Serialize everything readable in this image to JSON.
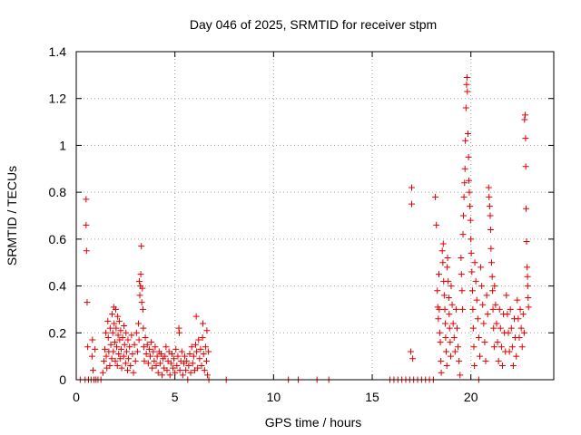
{
  "chart_data": {
    "type": "scatter",
    "title": "Day 046 of 2025, SRMTID for receiver stpm",
    "xlabel": "GPS time / hours",
    "ylabel": "SRMTID / TECUs",
    "xlim": [
      0,
      24.2
    ],
    "ylim": [
      0,
      1.4
    ],
    "x_ticks": [
      0,
      5,
      10,
      15,
      20
    ],
    "x_tick_labels": [
      "0",
      "5",
      "10",
      "15",
      "20"
    ],
    "y_ticks": [
      0,
      0.2,
      0.4,
      0.6,
      0.8,
      1.0,
      1.2,
      1.4
    ],
    "y_tick_labels": [
      "0",
      "0.2",
      "0.4",
      "0.6",
      "0.8",
      "1",
      "1.2",
      "1.4"
    ],
    "grid": true,
    "marker": "+",
    "series": [
      {
        "name": "SRMTID",
        "color": "#e00000",
        "points": [
          [
            0.2,
            0
          ],
          [
            0.45,
            0
          ],
          [
            0.5,
            0.77
          ],
          [
            0.5,
            0.66
          ],
          [
            0.52,
            0.55
          ],
          [
            0.55,
            0.33
          ],
          [
            0.58,
            0.14
          ],
          [
            0.62,
            0
          ],
          [
            0.75,
            0
          ],
          [
            0.8,
            0.1
          ],
          [
            0.82,
            0.17
          ],
          [
            0.85,
            0.04
          ],
          [
            0.9,
            0
          ],
          [
            0.95,
            0.13
          ],
          [
            1.0,
            0
          ],
          [
            1.1,
            0
          ],
          [
            1.25,
            0
          ],
          [
            1.35,
            0.03
          ],
          [
            1.4,
            0.08
          ],
          [
            1.45,
            0.13
          ],
          [
            1.5,
            0.2
          ],
          [
            1.52,
            0.1
          ],
          [
            1.55,
            0.05
          ],
          [
            1.6,
            0.25
          ],
          [
            1.62,
            0.18
          ],
          [
            1.65,
            0.12
          ],
          [
            1.7,
            0.06
          ],
          [
            1.72,
            0.22
          ],
          [
            1.75,
            0.15
          ],
          [
            1.8,
            0.09
          ],
          [
            1.82,
            0.28
          ],
          [
            1.85,
            0.2
          ],
          [
            1.88,
            0.12
          ],
          [
            1.9,
            0.31
          ],
          [
            1.92,
            0.24
          ],
          [
            1.95,
            0.16
          ],
          [
            1.98,
            0.08
          ],
          [
            2.0,
            0.3
          ],
          [
            2.02,
            0.22
          ],
          [
            2.05,
            0.14
          ],
          [
            2.08,
            0.06
          ],
          [
            2.1,
            0.27
          ],
          [
            2.12,
            0.19
          ],
          [
            2.15,
            0.11
          ],
          [
            2.18,
            0.25
          ],
          [
            2.2,
            0.17
          ],
          [
            2.22,
            0.09
          ],
          [
            2.25,
            0.21
          ],
          [
            2.28,
            0.13
          ],
          [
            2.3,
            0.05
          ],
          [
            2.35,
            0.18
          ],
          [
            2.4,
            0.1
          ],
          [
            2.42,
            0.23
          ],
          [
            2.45,
            0.15
          ],
          [
            2.5,
            0.07
          ],
          [
            2.52,
            0.2
          ],
          [
            2.55,
            0.12
          ],
          [
            2.6,
            0.04
          ],
          [
            2.62,
            0.17
          ],
          [
            2.65,
            0.09
          ],
          [
            2.7,
            0.14
          ],
          [
            2.75,
            0.06
          ],
          [
            2.8,
            0.19
          ],
          [
            2.85,
            0.11
          ],
          [
            2.9,
            0.03
          ],
          [
            2.95,
            0.15
          ],
          [
            3.0,
            0.08
          ],
          [
            3.05,
            0.2
          ],
          [
            3.1,
            0.12
          ],
          [
            3.15,
            0.24
          ],
          [
            3.18,
            0.17
          ],
          [
            3.2,
            0.42
          ],
          [
            3.22,
            0.36
          ],
          [
            3.25,
            0.4
          ],
          [
            3.27,
            0.45
          ],
          [
            3.3,
            0.57
          ],
          [
            3.32,
            0.33
          ],
          [
            3.35,
            0.39
          ],
          [
            3.38,
            0.3
          ],
          [
            3.4,
            0.22
          ],
          [
            3.42,
            0.14
          ],
          [
            3.45,
            0.08
          ],
          [
            3.5,
            0.18
          ],
          [
            3.55,
            0.11
          ],
          [
            3.6,
            0.15
          ],
          [
            3.65,
            0.07
          ],
          [
            3.7,
            0.13
          ],
          [
            3.75,
            0.1
          ],
          [
            3.8,
            0.16
          ],
          [
            3.85,
            0.05
          ],
          [
            3.9,
            0.12
          ],
          [
            3.95,
            0.08
          ],
          [
            4.0,
            0.14
          ],
          [
            4.05,
            0.06
          ],
          [
            4.1,
            0.1
          ],
          [
            4.15,
            0.03
          ],
          [
            4.2,
            0.12
          ],
          [
            4.25,
            0.07
          ],
          [
            4.3,
            0.11
          ],
          [
            4.35,
            0.02
          ],
          [
            4.4,
            0.09
          ],
          [
            4.45,
            0.05
          ],
          [
            4.5,
            0.1
          ],
          [
            4.55,
            0.14
          ],
          [
            4.6,
            0.04
          ],
          [
            4.65,
            0.08
          ],
          [
            4.7,
            0.12
          ],
          [
            4.75,
            0.02
          ],
          [
            4.8,
            0.07
          ],
          [
            4.85,
            0.11
          ],
          [
            4.9,
            0.05
          ],
          [
            4.95,
            0.09
          ],
          [
            5.0,
            0.03
          ],
          [
            5.05,
            0.13
          ],
          [
            5.1,
            0.06
          ],
          [
            5.15,
            0.1
          ],
          [
            5.2,
            0.22
          ],
          [
            5.22,
            0.2
          ],
          [
            5.25,
            0.04
          ],
          [
            5.3,
            0.08
          ],
          [
            5.35,
            0.12
          ],
          [
            5.4,
            0.02
          ],
          [
            5.45,
            0.07
          ],
          [
            5.5,
            0.1
          ],
          [
            5.55,
            0.04
          ],
          [
            5.6,
            0.08
          ],
          [
            5.65,
            0
          ],
          [
            5.7,
            0.06
          ],
          [
            5.75,
            0.11
          ],
          [
            5.8,
            0.03
          ],
          [
            5.85,
            0.14
          ],
          [
            5.9,
            0.07
          ],
          [
            5.95,
            0.1
          ],
          [
            6.0,
            0.04
          ],
          [
            6.05,
            0.15
          ],
          [
            6.08,
            0.27
          ],
          [
            6.1,
            0.12
          ],
          [
            6.15,
            0.05
          ],
          [
            6.2,
            0.17
          ],
          [
            6.25,
            0.09
          ],
          [
            6.3,
            0.13
          ],
          [
            6.35,
            0.06
          ],
          [
            6.4,
            0.18
          ],
          [
            6.42,
            0.24
          ],
          [
            6.45,
            0.11
          ],
          [
            6.5,
            0.04
          ],
          [
            6.55,
            0.14
          ],
          [
            6.6,
            0.08
          ],
          [
            6.62,
            0.21
          ],
          [
            6.65,
            0.02
          ],
          [
            6.7,
            0.12
          ],
          [
            6.72,
            0
          ],
          [
            7.6,
            0
          ],
          [
            10.75,
            0
          ],
          [
            11.25,
            0
          ],
          [
            12.2,
            0
          ],
          [
            12.8,
            0
          ],
          [
            15.9,
            0
          ],
          [
            16.1,
            0
          ],
          [
            16.3,
            0
          ],
          [
            16.5,
            0
          ],
          [
            16.7,
            0
          ],
          [
            16.9,
            0
          ],
          [
            16.95,
            0.12
          ],
          [
            17.0,
            0.82
          ],
          [
            17.0,
            0.75
          ],
          [
            17.05,
            0.09
          ],
          [
            17.1,
            0
          ],
          [
            17.3,
            0
          ],
          [
            17.5,
            0
          ],
          [
            17.7,
            0
          ],
          [
            17.9,
            0
          ],
          [
            18.1,
            0
          ],
          [
            18.2,
            0.78
          ],
          [
            18.25,
            0.66
          ],
          [
            18.3,
            0.38
          ],
          [
            18.32,
            0.31
          ],
          [
            18.35,
            0.26
          ],
          [
            18.38,
            0.45
          ],
          [
            18.4,
            0.3
          ],
          [
            18.42,
            0.2
          ],
          [
            18.45,
            0.16
          ],
          [
            18.48,
            0.08
          ],
          [
            18.5,
            0.03
          ],
          [
            18.55,
            0.55
          ],
          [
            18.58,
            0.5
          ],
          [
            18.6,
            0.58
          ],
          [
            18.62,
            0.42
          ],
          [
            18.65,
            0.36
          ],
          [
            18.68,
            0.3
          ],
          [
            18.7,
            0.24
          ],
          [
            18.72,
            0.18
          ],
          [
            18.75,
            0.12
          ],
          [
            18.78,
            0.06
          ],
          [
            18.8,
            0.48
          ],
          [
            18.82,
            0.52
          ],
          [
            18.85,
            0.42
          ],
          [
            18.88,
            0.35
          ],
          [
            18.9,
            0.28
          ],
          [
            18.92,
            0.22
          ],
          [
            18.95,
            0.16
          ],
          [
            18.98,
            0.1
          ],
          [
            19.0,
            0.4
          ],
          [
            19.05,
            0.32
          ],
          [
            19.1,
            0.24
          ],
          [
            19.15,
            0.18
          ],
          [
            19.2,
            0.12
          ],
          [
            19.25,
            0.3
          ],
          [
            19.3,
            0.22
          ],
          [
            19.35,
            0.14
          ],
          [
            19.4,
            0.08
          ],
          [
            19.45,
            0.02
          ],
          [
            19.5,
            0.52
          ],
          [
            19.52,
            0.45
          ],
          [
            19.55,
            0.38
          ],
          [
            19.58,
            0.3
          ],
          [
            19.6,
            0.62
          ],
          [
            19.62,
            0.7
          ],
          [
            19.65,
            0.78
          ],
          [
            19.68,
            0.84
          ],
          [
            19.7,
            0.9
          ],
          [
            19.72,
            1.02
          ],
          [
            19.75,
            1.16
          ],
          [
            19.78,
            1.26
          ],
          [
            19.8,
            1.29
          ],
          [
            19.82,
            1.23
          ],
          [
            19.85,
            1.05
          ],
          [
            19.88,
            0.95
          ],
          [
            19.9,
            0.85
          ],
          [
            19.92,
            0.8
          ],
          [
            19.95,
            0.74
          ],
          [
            19.98,
            0.68
          ],
          [
            20.0,
            0.6
          ],
          [
            20.02,
            0.54
          ],
          [
            20.05,
            0.46
          ],
          [
            20.08,
            0.38
          ],
          [
            20.1,
            0.3
          ],
          [
            20.12,
            0.22
          ],
          [
            20.15,
            0.14
          ],
          [
            20.18,
            0.06
          ],
          [
            20.2,
            0.5
          ],
          [
            20.25,
            0.42
          ],
          [
            20.3,
            0.34
          ],
          [
            20.35,
            0.26
          ],
          [
            20.4,
            0
          ],
          [
            20.4,
            0.18
          ],
          [
            20.45,
            0.1
          ],
          [
            20.5,
            0.48
          ],
          [
            20.55,
            0.4
          ],
          [
            20.6,
            0.32
          ],
          [
            20.65,
            0.24
          ],
          [
            20.7,
            0.16
          ],
          [
            20.75,
            0.08
          ],
          [
            20.8,
            0.36
          ],
          [
            20.85,
            0.28
          ],
          [
            20.9,
            0.82
          ],
          [
            20.92,
            0.78
          ],
          [
            20.95,
            0.74
          ],
          [
            20.98,
            0.7
          ],
          [
            21.0,
            0.64
          ],
          [
            21.02,
            0.56
          ],
          [
            21.05,
            0.5
          ],
          [
            21.08,
            0.44
          ],
          [
            21.1,
            0.38
          ],
          [
            21.12,
            0.3
          ],
          [
            21.15,
            0.22
          ],
          [
            21.18,
            0.14
          ],
          [
            21.2,
            0.4
          ],
          [
            21.25,
            0.32
          ],
          [
            21.3,
            0.24
          ],
          [
            21.35,
            0.16
          ],
          [
            21.4,
            0.08
          ],
          [
            21.45,
            0.3
          ],
          [
            21.5,
            0.22
          ],
          [
            21.55,
            0.14
          ],
          [
            21.6,
            0.06
          ],
          [
            21.65,
            0.28
          ],
          [
            21.7,
            0.2
          ],
          [
            21.75,
            0.12
          ],
          [
            21.8,
            0.36
          ],
          [
            21.85,
            0.28
          ],
          [
            21.9,
            0.2
          ],
          [
            21.95,
            0.12
          ],
          [
            22.0,
            0.3
          ],
          [
            22.05,
            0.22
          ],
          [
            22.1,
            0.14
          ],
          [
            22.15,
            0.06
          ],
          [
            22.2,
            0.26
          ],
          [
            22.25,
            0.18
          ],
          [
            22.3,
            0.1
          ],
          [
            22.35,
            0.34
          ],
          [
            22.4,
            0.26
          ],
          [
            22.45,
            0.18
          ],
          [
            22.5,
            0.3
          ],
          [
            22.55,
            0.22
          ],
          [
            22.6,
            0.14
          ],
          [
            22.65,
            0.28
          ],
          [
            22.7,
            0.2
          ],
          [
            22.72,
            1.11
          ],
          [
            22.75,
            1.13
          ],
          [
            22.77,
            1.03
          ],
          [
            22.78,
            0.91
          ],
          [
            22.8,
            0.73
          ],
          [
            22.82,
            0.59
          ],
          [
            22.85,
            0.48
          ],
          [
            22.87,
            0.44
          ],
          [
            22.88,
            0.4
          ],
          [
            22.9,
            0.35
          ],
          [
            22.92,
            0.31
          ]
        ]
      }
    ]
  }
}
